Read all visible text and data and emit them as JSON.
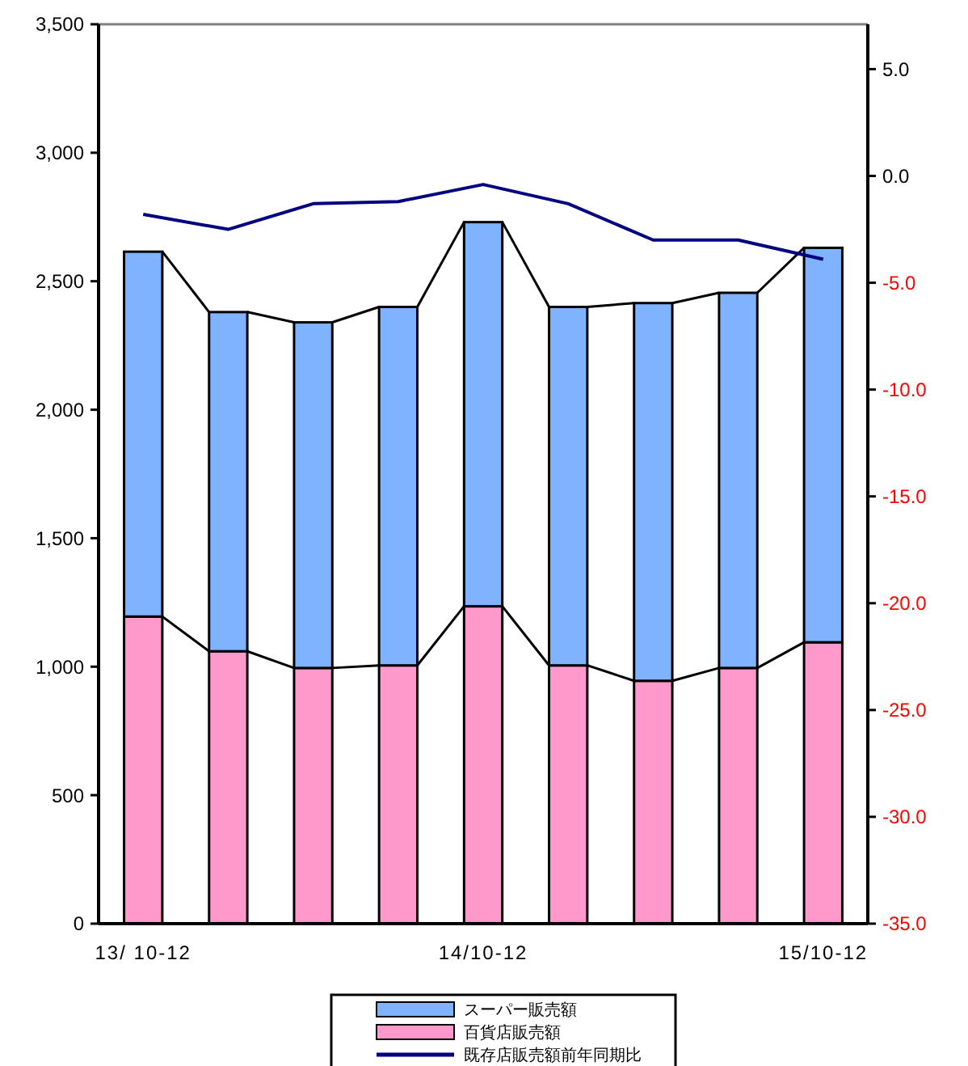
{
  "chart_data": {
    "type": "bar",
    "stacked": true,
    "categories": [
      "13/ 10-12",
      null,
      null,
      null,
      "14/10-12",
      null,
      null,
      null,
      "15/10-12"
    ],
    "series": [
      {
        "name": "百貨店販売額",
        "color": "#ff99cc",
        "values": [
          1195,
          1060,
          995,
          1005,
          1235,
          1005,
          945,
          995,
          1095
        ]
      },
      {
        "name": "スーパー販売額",
        "color": "#80b3ff",
        "values": [
          1420,
          1320,
          1345,
          1395,
          1495,
          1395,
          1470,
          1460,
          1535
        ]
      },
      {
        "name": "既存店販売額前年同期比",
        "type": "line",
        "axis": "y2",
        "color": "#000080",
        "values": [
          -1.8,
          -2.5,
          -1.3,
          -1.2,
          -0.4,
          -1.3,
          -3.0,
          -3.0,
          -3.9
        ]
      }
    ],
    "ylim": [
      0,
      3500
    ],
    "yticks": [
      {
        "value": 0,
        "label": "0"
      },
      {
        "value": 500,
        "label": "500"
      },
      {
        "value": 1000,
        "label": "1,000"
      },
      {
        "value": 1500,
        "label": "1,500"
      },
      {
        "value": 2000,
        "label": "2,000"
      },
      {
        "value": 2500,
        "label": "2,500"
      },
      {
        "value": 3000,
        "label": "3,000"
      },
      {
        "value": 3500,
        "label": "3,500"
      }
    ],
    "y2lim": [
      -35,
      7.1
    ],
    "y2ticks": [
      {
        "value": 5,
        "label": "5.0"
      },
      {
        "value": 0,
        "label": "0.0"
      },
      {
        "value": -5,
        "label": "-5.0"
      },
      {
        "value": -10,
        "label": "-10.0"
      },
      {
        "value": -15,
        "label": "-15.0"
      },
      {
        "value": -20,
        "label": "-20.0"
      },
      {
        "value": -25,
        "label": "-25.0"
      },
      {
        "value": -30,
        "label": "-30.0"
      },
      {
        "value": -35,
        "label": "-35.0"
      }
    ],
    "legend": "bottom",
    "grid": false
  }
}
